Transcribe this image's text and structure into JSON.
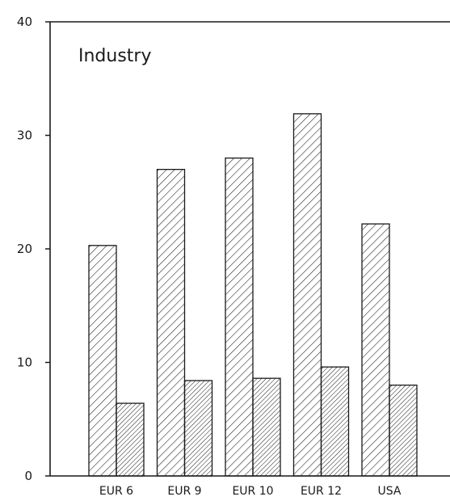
{
  "chart_data": {
    "type": "bar",
    "title": "Industry",
    "xlabel": "",
    "ylabel": "",
    "categories": [
      "EUR 6",
      "EUR 9",
      "EUR 10",
      "EUR 12",
      "USA"
    ],
    "series": [
      {
        "values": [
          20.3,
          27.0,
          28.0,
          31.9,
          22.2
        ],
        "pattern": "wide-hatch"
      },
      {
        "values": [
          6.4,
          8.4,
          8.6,
          9.6,
          8.0
        ],
        "pattern": "dense-hatch"
      }
    ],
    "ylim": [
      0,
      40
    ],
    "yticks": [
      0,
      10,
      20,
      30,
      40
    ],
    "grid": false,
    "colors": {
      "ink": "#1a1a1a",
      "background": "#ffffff"
    }
  }
}
